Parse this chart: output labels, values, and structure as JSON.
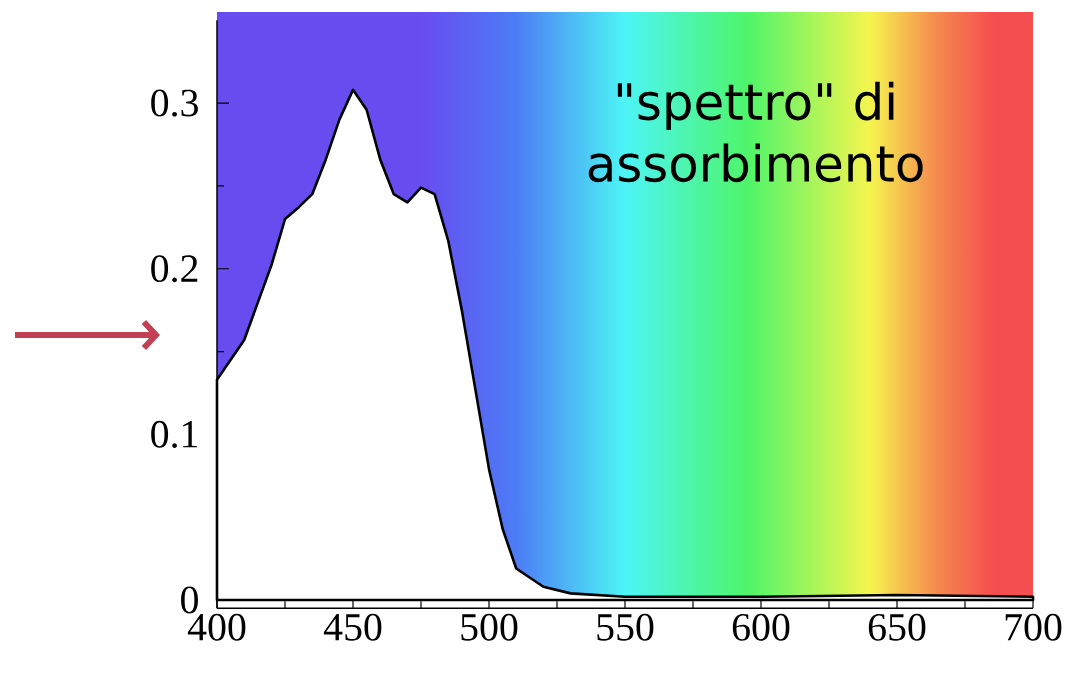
{
  "chart_data": {
    "type": "area",
    "annotations": [
      "\"spettro\" di assorbimento"
    ],
    "x": [
      400,
      410,
      420,
      425,
      430,
      435,
      440,
      445,
      450,
      455,
      460,
      465,
      470,
      475,
      480,
      485,
      490,
      495,
      500,
      505,
      510,
      520,
      530,
      550,
      600,
      650,
      700
    ],
    "series": [
      {
        "color": "#ffffff",
        "values": [
          0.133,
          0.157,
          0.202,
          0.23,
          0.237,
          0.245,
          0.266,
          0.29,
          0.308,
          0.296,
          0.266,
          0.245,
          0.24,
          0.249,
          0.245,
          0.217,
          0.175,
          0.127,
          0.079,
          0.043,
          0.019,
          0.008,
          0.004,
          0.002,
          0.002,
          0.003,
          0.002
        ]
      }
    ],
    "xlim": [
      400,
      700
    ],
    "ylim": [
      -0.005,
      0.35
    ],
    "xticks": [
      400,
      {
        "value": 425,
        "label": null
      },
      450,
      {
        "value": 475,
        "label": null
      },
      500,
      {
        "value": 525,
        "label": null
      },
      550,
      {
        "value": 575,
        "label": null
      },
      600,
      {
        "value": 625,
        "label": null
      },
      650,
      {
        "value": 675,
        "label": null
      },
      700
    ],
    "yticks": [
      0,
      {
        "value": 0.05,
        "label": null
      },
      0.1,
      {
        "value": 0.15,
        "label": null
      },
      0.2,
      {
        "value": 0.25,
        "label": null
      },
      0.3
    ],
    "grid": false
  }
}
